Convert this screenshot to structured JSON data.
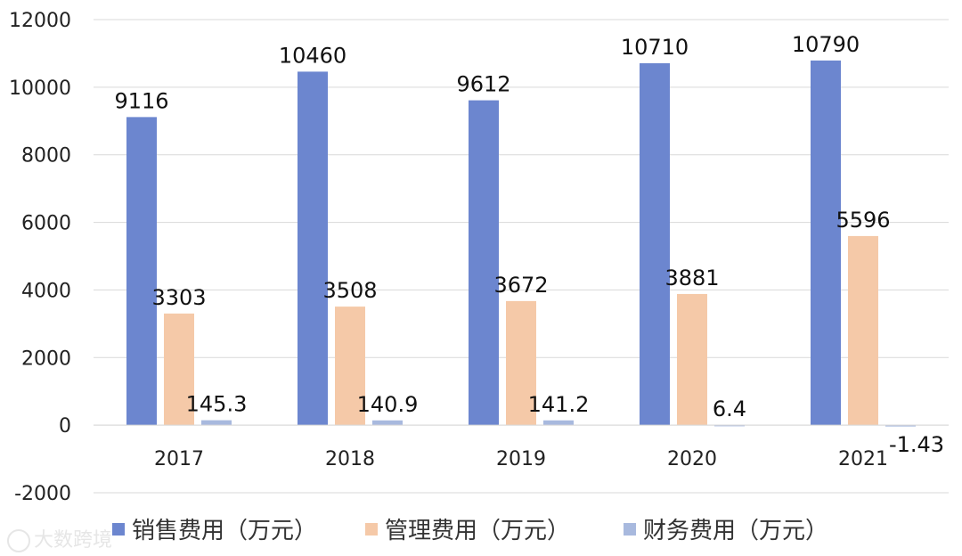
{
  "chart_data": {
    "type": "bar",
    "categories": [
      "2017",
      "2018",
      "2019",
      "2020",
      "2021"
    ],
    "series": [
      {
        "name": "销售费用（万元）",
        "values": [
          9116,
          10460,
          9612,
          10710,
          10790
        ],
        "labels": [
          "9116",
          "10460",
          "9612",
          "10710",
          "10790"
        ],
        "color": "#6c86cf"
      },
      {
        "name": "管理费用（万元）",
        "values": [
          3303,
          3508,
          3672,
          3881,
          5596
        ],
        "labels": [
          "3303",
          "3508",
          "3672",
          "3881",
          "5596"
        ],
        "color": "#f5c9a8"
      },
      {
        "name": "财务费用（万元）",
        "values": [
          145.3,
          140.9,
          141.2,
          6.4,
          -1.43
        ],
        "labels": [
          "145.3",
          "140.9",
          "141.2",
          "6.4",
          "-1.43"
        ],
        "color": "#a8b9de"
      }
    ],
    "ylim": [
      -2000,
      12000
    ],
    "yticks": [
      "-2000",
      "0",
      "2000",
      "4000",
      "6000",
      "8000",
      "10000",
      "12000"
    ],
    "grid": true,
    "legend_position": "bottom"
  },
  "watermark": "大数跨境"
}
